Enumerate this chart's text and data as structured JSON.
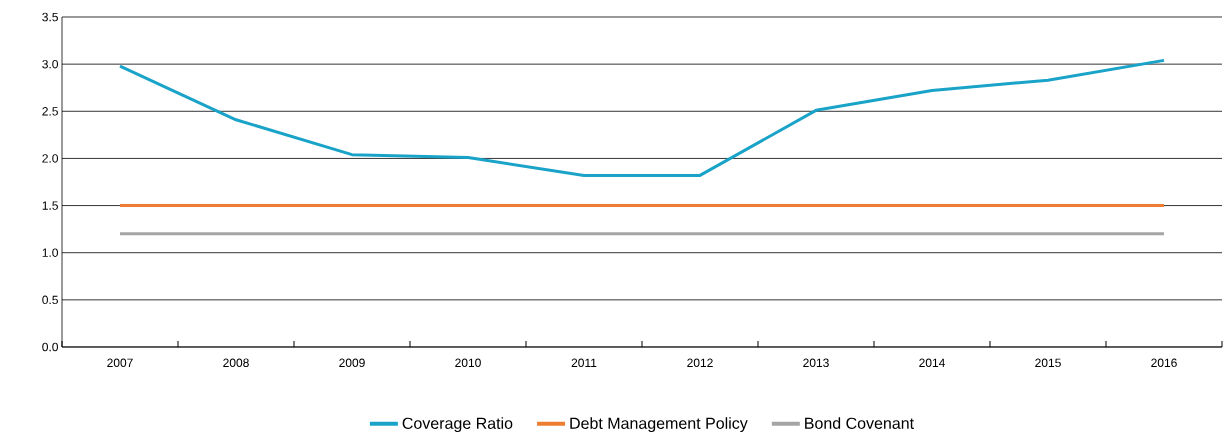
{
  "chart_data": {
    "type": "line",
    "categories": [
      "2007",
      "2008",
      "2009",
      "2010",
      "2011",
      "2012",
      "2013",
      "2014",
      "2015",
      "2016"
    ],
    "series": [
      {
        "name": "Coverage Ratio",
        "color": "#1aa3c8",
        "values": [
          2.98,
          2.41,
          2.04,
          2.01,
          1.82,
          1.82,
          2.51,
          2.72,
          2.83,
          3.04
        ]
      },
      {
        "name": "Debt Management Policy",
        "color": "#ed7d31",
        "values": [
          1.5,
          1.5,
          1.5,
          1.5,
          1.5,
          1.5,
          1.5,
          1.5,
          1.5,
          1.5
        ]
      },
      {
        "name": "Bond Covenant",
        "color": "#a5a5a5",
        "values": [
          1.2,
          1.2,
          1.2,
          1.2,
          1.2,
          1.2,
          1.2,
          1.2,
          1.2,
          1.2
        ]
      }
    ],
    "ylim": [
      0,
      3.5
    ],
    "yticks": [
      {
        "value": 0,
        "label": "0.0"
      },
      {
        "value": 0.5,
        "label": "0.5"
      },
      {
        "value": 1,
        "label": "1.0"
      },
      {
        "value": 1.5,
        "label": "1.5"
      },
      {
        "value": 2,
        "label": "2.0"
      },
      {
        "value": 2.5,
        "label": "2.5"
      },
      {
        "value": 3,
        "label": "3.0"
      },
      {
        "value": 3.5,
        "label": "3.5"
      }
    ],
    "grid": "y",
    "legend": "bottom",
    "marker": "none",
    "line_style": "solid"
  }
}
